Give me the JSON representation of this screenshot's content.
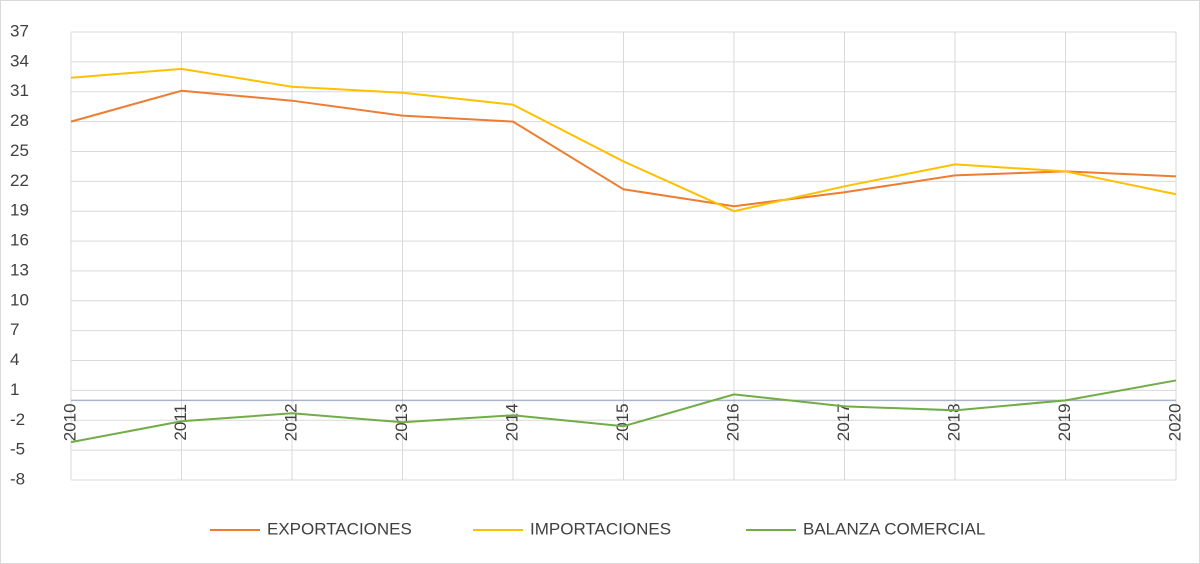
{
  "chart_data": {
    "type": "line",
    "categories": [
      "2010",
      "2011",
      "2012",
      "2013",
      "2014",
      "2015",
      "2016",
      "2017",
      "2018",
      "2019",
      "2020"
    ],
    "series": [
      {
        "name": "EXPORTACIONES",
        "color": "#ed7d31",
        "values": [
          28.0,
          31.1,
          30.1,
          28.6,
          28.0,
          21.2,
          19.5,
          20.9,
          22.6,
          23.0,
          22.5
        ]
      },
      {
        "name": "IMPORTACIONES",
        "color": "#ffc000",
        "values": [
          32.4,
          33.3,
          31.5,
          30.9,
          29.7,
          24.0,
          19.0,
          21.5,
          23.7,
          23.0,
          20.7
        ]
      },
      {
        "name": "BALANZA COMERCIAL",
        "color": "#70ad47",
        "values": [
          -4.2,
          -2.1,
          -1.3,
          -2.2,
          -1.5,
          -2.6,
          0.6,
          -0.6,
          -1.0,
          0.0,
          2.0
        ]
      }
    ],
    "ylim": [
      -8,
      37
    ],
    "yticks": [
      -8,
      -5,
      -2,
      1,
      4,
      7,
      10,
      13,
      16,
      19,
      22,
      25,
      28,
      31,
      34,
      37
    ],
    "grid": true,
    "legend": "bottom"
  }
}
